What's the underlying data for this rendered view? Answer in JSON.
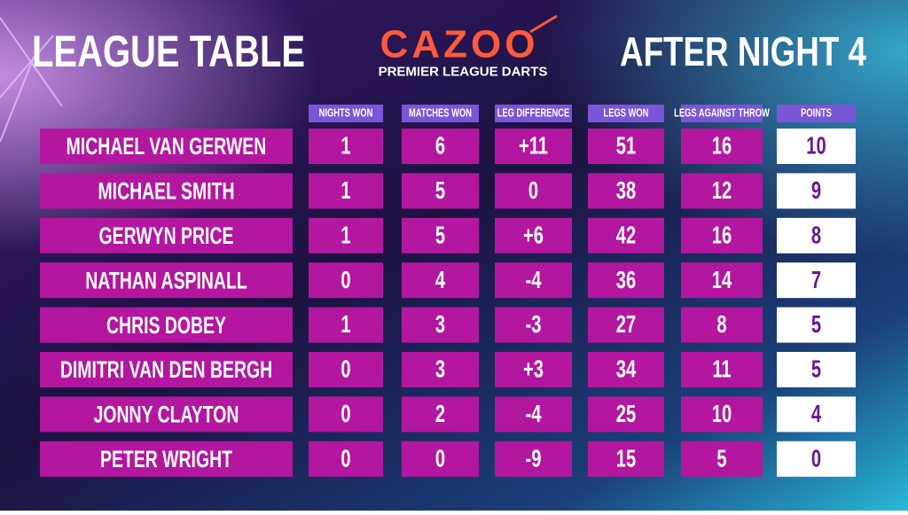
{
  "header": {
    "title": "LEAGUE TABLE",
    "subtitle": "AFTER NIGHT 4"
  },
  "logo": {
    "brand": "CAZOO",
    "tagline": "PREMIER LEAGUE DARTS"
  },
  "table": {
    "columns": [
      "NIGHTS WON",
      "MATCHES WON",
      "LEG DIFFERENCE",
      "LEGS WON",
      "LEGS AGAINST THROW",
      "POINTS"
    ],
    "rows": [
      [
        "MICHAEL VAN GERWEN",
        "1",
        "6",
        "+11",
        "51",
        "16",
        "10"
      ],
      [
        "MICHAEL SMITH",
        "1",
        "5",
        "0",
        "38",
        "12",
        "9"
      ],
      [
        "GERWYN PRICE",
        "1",
        "5",
        "+6",
        "42",
        "16",
        "8"
      ],
      [
        "NATHAN ASPINALL",
        "0",
        "4",
        "-4",
        "36",
        "14",
        "7"
      ],
      [
        "CHRIS DOBEY",
        "1",
        "3",
        "-3",
        "27",
        "8",
        "5"
      ],
      [
        "DIMITRI VAN DEN BERGH",
        "0",
        "3",
        "+3",
        "34",
        "11",
        "5"
      ],
      [
        "JONNY CLAYTON",
        "0",
        "2",
        "-4",
        "25",
        "10",
        "4"
      ],
      [
        "PETER WRIGHT",
        "0",
        "0",
        "-9",
        "15",
        "5",
        "0"
      ]
    ]
  }
}
